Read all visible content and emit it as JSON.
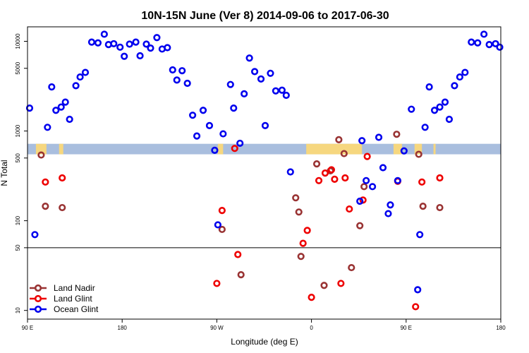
{
  "chart_data": {
    "type": "scatter",
    "title": "10N-15N June (Ver 8)   2014-09-06 to 2017-06-30",
    "xlabel": "Longitude (deg E)",
    "ylabel": "N Total",
    "xscale": "linear",
    "yscale": "log",
    "xlim": [
      90,
      540
    ],
    "ylim": [
      8,
      14500
    ],
    "x_ticks": [
      {
        "value": 90,
        "label": "90 E"
      },
      {
        "value": 180,
        "label": "180"
      },
      {
        "value": 270,
        "label": "90 W"
      },
      {
        "value": 360,
        "label": "0"
      },
      {
        "value": 450,
        "label": "90 E"
      },
      {
        "value": 540,
        "label": "180"
      }
    ],
    "y_ticks": [
      {
        "value": 10,
        "label": "10"
      },
      {
        "value": 50,
        "label": "50"
      },
      {
        "value": 100,
        "label": "100"
      },
      {
        "value": 500,
        "label": "500"
      },
      {
        "value": 1000,
        "label": "1000"
      },
      {
        "value": 5000,
        "label": "5000"
      },
      {
        "value": 10000,
        "label": "10000"
      }
    ],
    "reference_line": 50,
    "land_mask_band": {
      "ymin": 550,
      "ymax": 720,
      "ocean_color": "#a9bede",
      "land_color": "#f6d77f",
      "land_segments": [
        [
          98,
          108
        ],
        [
          120,
          124
        ],
        [
          271,
          276
        ],
        [
          355,
          408
        ],
        [
          438,
          446
        ],
        [
          458,
          465
        ],
        [
          476,
          478
        ]
      ]
    },
    "legend_position": "bottom-left",
    "series": [
      {
        "name": "Land Nadir",
        "color": "#993333",
        "points": [
          [
            103,
            540
          ],
          [
            107,
            145
          ],
          [
            123,
            140
          ],
          [
            275,
            80
          ],
          [
            293,
            25
          ],
          [
            345,
            180
          ],
          [
            348,
            125
          ],
          [
            350,
            40
          ],
          [
            365,
            430
          ],
          [
            372,
            19
          ],
          [
            378,
            360
          ],
          [
            386,
            800
          ],
          [
            391,
            560
          ],
          [
            398,
            30
          ],
          [
            406,
            88
          ],
          [
            410,
            240
          ],
          [
            441,
            920
          ],
          [
            462,
            550
          ],
          [
            466,
            145
          ],
          [
            482,
            140
          ]
        ]
      },
      {
        "name": "Land Glint",
        "color": "#ee0000",
        "points": [
          [
            107,
            270
          ],
          [
            123,
            300
          ],
          [
            270,
            20
          ],
          [
            275,
            130
          ],
          [
            287,
            640
          ],
          [
            290,
            42
          ],
          [
            352,
            56
          ],
          [
            356,
            78
          ],
          [
            360,
            14
          ],
          [
            367,
            280
          ],
          [
            373,
            340
          ],
          [
            379,
            370
          ],
          [
            382,
            290
          ],
          [
            388,
            20
          ],
          [
            392,
            300
          ],
          [
            396,
            135
          ],
          [
            409,
            170
          ],
          [
            413,
            520
          ],
          [
            442,
            275
          ],
          [
            459,
            11
          ],
          [
            465,
            270
          ],
          [
            482,
            300
          ]
        ]
      },
      {
        "name": "Ocean Glint",
        "color": "#0000ee",
        "points": [
          [
            92,
            1800
          ],
          [
            97,
            70
          ],
          [
            109,
            1100
          ],
          [
            113,
            3100
          ],
          [
            117,
            1700
          ],
          [
            122,
            1850
          ],
          [
            126,
            2100
          ],
          [
            130,
            1350
          ],
          [
            136,
            3200
          ],
          [
            140,
            4000
          ],
          [
            145,
            4500
          ],
          [
            151,
            9800
          ],
          [
            157,
            9600
          ],
          [
            163,
            12000
          ],
          [
            167,
            9200
          ],
          [
            172,
            9400
          ],
          [
            178,
            8600
          ],
          [
            182,
            6800
          ],
          [
            187,
            9300
          ],
          [
            193,
            9800
          ],
          [
            197,
            6900
          ],
          [
            203,
            9300
          ],
          [
            207,
            8400
          ],
          [
            213,
            11000
          ],
          [
            218,
            8200
          ],
          [
            223,
            8500
          ],
          [
            228,
            4800
          ],
          [
            232,
            3700
          ],
          [
            237,
            4700
          ],
          [
            242,
            3400
          ],
          [
            247,
            1500
          ],
          [
            251,
            880
          ],
          [
            257,
            1700
          ],
          [
            263,
            1150
          ],
          [
            268,
            610
          ],
          [
            271,
            90
          ],
          [
            276,
            930
          ],
          [
            283,
            3300
          ],
          [
            286,
            1800
          ],
          [
            292,
            730
          ],
          [
            296,
            2600
          ],
          [
            301,
            6500
          ],
          [
            306,
            4600
          ],
          [
            312,
            3800
          ],
          [
            316,
            1150
          ],
          [
            321,
            4400
          ],
          [
            326,
            2800
          ],
          [
            332,
            2850
          ],
          [
            336,
            2500
          ],
          [
            340,
            350
          ],
          [
            406,
            165
          ],
          [
            408,
            780
          ],
          [
            412,
            280
          ],
          [
            418,
            240
          ],
          [
            424,
            850
          ],
          [
            428,
            390
          ],
          [
            433,
            120
          ],
          [
            435,
            150
          ],
          [
            442,
            280
          ],
          [
            448,
            600
          ],
          [
            455,
            1750
          ],
          [
            463,
            70
          ],
          [
            468,
            1100
          ],
          [
            472,
            3100
          ],
          [
            477,
            1700
          ],
          [
            482,
            1850
          ],
          [
            487,
            2100
          ],
          [
            491,
            1350
          ],
          [
            496,
            3200
          ],
          [
            501,
            4000
          ],
          [
            506,
            4500
          ],
          [
            512,
            9800
          ],
          [
            518,
            9600
          ],
          [
            524,
            12000
          ],
          [
            529,
            9200
          ],
          [
            535,
            9400
          ],
          [
            539,
            8600
          ],
          [
            461,
            17
          ]
        ]
      }
    ]
  }
}
